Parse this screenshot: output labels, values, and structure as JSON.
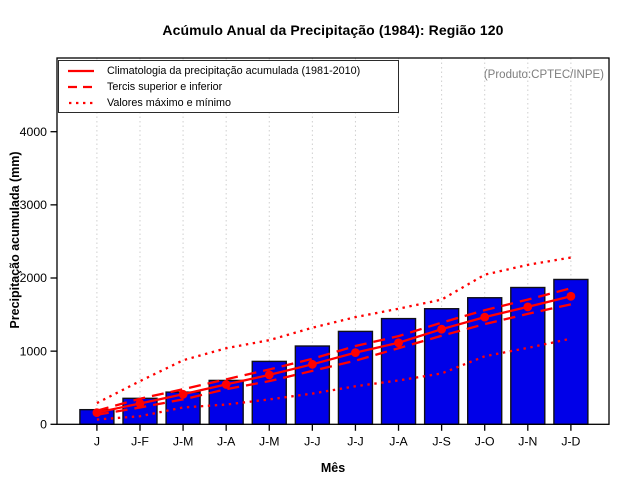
{
  "title": "Acúmulo Anual da Precipitação (1984): Região 120",
  "product_label": "(Produto:CPTEC/INPE)",
  "legend": {
    "items": [
      {
        "label": "Climatologia da precipitação acumulada (1981-2010)",
        "style": "solid"
      },
      {
        "label": "Tercis superior e inferior",
        "style": "dashed"
      },
      {
        "label": "Valores máximo e mínimo",
        "style": "dotted"
      }
    ]
  },
  "chart_data": {
    "type": "bar",
    "title": "Acúmulo Anual da Precipitação (1984): Região 120",
    "xlabel": "Mês",
    "ylabel": "Precipitação acumulada (mm)",
    "categories": [
      "J",
      "J-F",
      "J-M",
      "J-A",
      "J-M",
      "J-J",
      "J-J",
      "J-A",
      "J-S",
      "J-O",
      "J-N",
      "J-D"
    ],
    "bars": {
      "name": "Precipitação acumulada (1984)",
      "values": [
        200,
        355,
        440,
        600,
        860,
        1070,
        1270,
        1445,
        1580,
        1730,
        1870,
        1980
      ]
    },
    "series": [
      {
        "id": "valores-maximo",
        "name": "Valores máximo",
        "style": "dotted",
        "values": [
          290,
          590,
          875,
          1040,
          1150,
          1320,
          1465,
          1580,
          1705,
          2045,
          2180,
          2280
        ]
      },
      {
        "id": "valores-minimo",
        "name": "Valores mínimo",
        "style": "dotted",
        "values": [
          65,
          110,
          230,
          270,
          340,
          420,
          520,
          600,
          695,
          930,
          1045,
          1170
        ]
      },
      {
        "id": "tercil-superior",
        "name": "Tercil superior",
        "style": "dashed",
        "values": [
          185,
          350,
          480,
          615,
          750,
          895,
          1070,
          1205,
          1390,
          1560,
          1705,
          1860
        ]
      },
      {
        "id": "tercil-inferior",
        "name": "Tercil inferior",
        "style": "dashed",
        "values": [
          130,
          230,
          340,
          480,
          590,
          730,
          870,
          1040,
          1210,
          1370,
          1510,
          1640
        ]
      },
      {
        "id": "climatologia",
        "name": "Climatologia da precipitação acumulada (1981-2010)",
        "style": "solid",
        "markers": true,
        "values": [
          160,
          285,
          410,
          545,
          675,
          820,
          980,
          1115,
          1300,
          1465,
          1605,
          1750
        ]
      }
    ],
    "ylim": [
      0,
      4000
    ],
    "yticks": [
      0,
      1000,
      2000,
      3000,
      4000
    ],
    "grid": "vertical-dotted",
    "legend_position": "top-left-inside",
    "colors": {
      "bar_fill": "#0000E8",
      "bar_border": "#101018",
      "line": "#FF0000",
      "grid": "#CFCFCF",
      "axis": "#000000",
      "product_label": "#7D7D7D"
    }
  }
}
